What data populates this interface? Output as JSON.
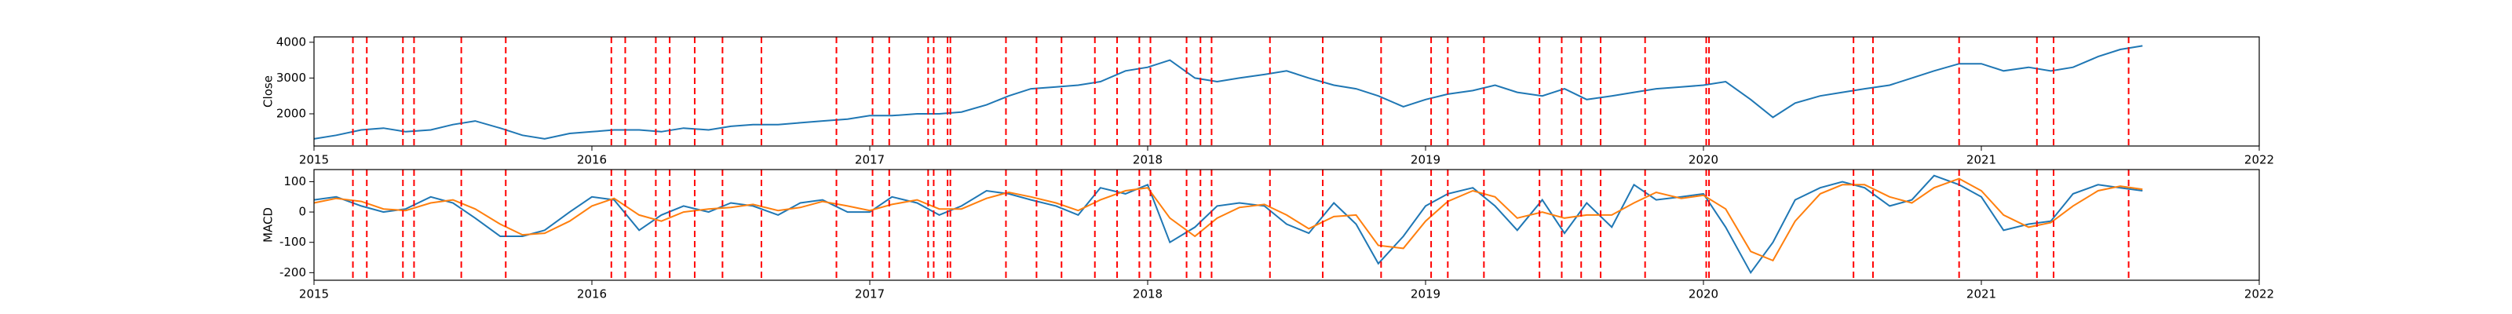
{
  "chart_data": [
    {
      "type": "line",
      "ylabel": "Close",
      "x": [
        2015.0,
        2015.08,
        2015.17,
        2015.25,
        2015.33,
        2015.42,
        2015.5,
        2015.58,
        2015.67,
        2015.75,
        2015.83,
        2015.92,
        2016.0,
        2016.08,
        2016.17,
        2016.25,
        2016.33,
        2016.42,
        2016.5,
        2016.58,
        2016.67,
        2016.75,
        2016.83,
        2016.92,
        2017.0,
        2017.08,
        2017.17,
        2017.25,
        2017.33,
        2017.42,
        2017.5,
        2017.58,
        2017.67,
        2017.75,
        2017.83,
        2017.92,
        2018.0,
        2018.08,
        2018.17,
        2018.25,
        2018.33,
        2018.42,
        2018.5,
        2018.58,
        2018.67,
        2018.75,
        2018.83,
        2018.92,
        2019.0,
        2019.08,
        2019.17,
        2019.25,
        2019.33,
        2019.42,
        2019.5,
        2019.58,
        2019.67,
        2019.75,
        2019.83,
        2019.92,
        2020.0,
        2020.08,
        2020.17,
        2020.25,
        2020.33,
        2020.42,
        2020.5,
        2020.58,
        2020.67,
        2020.75,
        2020.83,
        2020.92,
        2021.0,
        2021.08,
        2021.17,
        2021.25,
        2021.33,
        2021.42,
        2021.5,
        2021.58
      ],
      "series": [
        {
          "color": "#1f77b4",
          "values": [
            1300,
            1400,
            1550,
            1600,
            1500,
            1550,
            1700,
            1800,
            1600,
            1400,
            1300,
            1450,
            1500,
            1550,
            1550,
            1500,
            1600,
            1550,
            1650,
            1700,
            1700,
            1750,
            1800,
            1850,
            1950,
            1950,
            2000,
            2000,
            2050,
            2250,
            2500,
            2700,
            2750,
            2800,
            2900,
            3200,
            3300,
            3500,
            3000,
            2900,
            3000,
            3100,
            3200,
            3000,
            2800,
            2700,
            2500,
            2200,
            2400,
            2550,
            2650,
            2800,
            2600,
            2500,
            2700,
            2400,
            2500,
            2600,
            2700,
            2750,
            2800,
            2900,
            2400,
            1900,
            2300,
            2500,
            2600,
            2700,
            2800,
            3000,
            3200,
            3400,
            3400,
            3200,
            3300,
            3200,
            3300,
            3600,
            3800,
            3900
          ]
        }
      ],
      "vlines": {
        "color": "#ff0000",
        "x": [
          2015.14,
          2015.19,
          2015.32,
          2015.36,
          2015.53,
          2015.69,
          2016.07,
          2016.12,
          2016.23,
          2016.28,
          2016.37,
          2016.47,
          2016.61,
          2016.88,
          2017.01,
          2017.07,
          2017.21,
          2017.23,
          2017.28,
          2017.29,
          2017.49,
          2017.6,
          2017.69,
          2017.81,
          2017.89,
          2017.97,
          2018.01,
          2018.14,
          2018.19,
          2018.23,
          2018.44,
          2018.63,
          2018.84,
          2019.02,
          2019.08,
          2019.21,
          2019.41,
          2019.49,
          2019.56,
          2019.63,
          2019.79,
          2020.01,
          2020.02,
          2020.54,
          2020.61,
          2020.92,
          2021.2,
          2021.26,
          2021.53
        ]
      },
      "xlim": [
        2015,
        2022
      ],
      "xticks": [
        2015,
        2016,
        2017,
        2018,
        2019,
        2020,
        2021,
        2022
      ],
      "ylim": [
        1100,
        4150
      ],
      "yticks": [
        2000,
        3000,
        4000
      ]
    },
    {
      "type": "line",
      "ylabel": "MACD",
      "x": [
        2015.0,
        2015.08,
        2015.17,
        2015.25,
        2015.33,
        2015.42,
        2015.5,
        2015.58,
        2015.67,
        2015.75,
        2015.83,
        2015.92,
        2016.0,
        2016.08,
        2016.17,
        2016.25,
        2016.33,
        2016.42,
        2016.5,
        2016.58,
        2016.67,
        2016.75,
        2016.83,
        2016.92,
        2017.0,
        2017.08,
        2017.17,
        2017.25,
        2017.33,
        2017.42,
        2017.5,
        2017.58,
        2017.67,
        2017.75,
        2017.83,
        2017.92,
        2018.0,
        2018.08,
        2018.17,
        2018.25,
        2018.33,
        2018.42,
        2018.5,
        2018.58,
        2018.67,
        2018.75,
        2018.83,
        2018.92,
        2019.0,
        2019.08,
        2019.17,
        2019.25,
        2019.33,
        2019.42,
        2019.5,
        2019.58,
        2019.67,
        2019.75,
        2019.83,
        2019.92,
        2020.0,
        2020.08,
        2020.17,
        2020.25,
        2020.33,
        2020.42,
        2020.5,
        2020.58,
        2020.67,
        2020.75,
        2020.83,
        2020.92,
        2021.0,
        2021.08,
        2021.17,
        2021.25,
        2021.33,
        2021.42,
        2021.5,
        2021.58
      ],
      "series": [
        {
          "color": "#1f77b4",
          "values": [
            40,
            50,
            20,
            0,
            10,
            50,
            30,
            -20,
            -80,
            -80,
            -60,
            0,
            50,
            40,
            -60,
            -10,
            20,
            0,
            30,
            20,
            -10,
            30,
            40,
            0,
            0,
            50,
            30,
            -10,
            20,
            70,
            60,
            40,
            20,
            -10,
            80,
            60,
            90,
            -100,
            -50,
            20,
            30,
            20,
            -40,
            -70,
            30,
            -40,
            -170,
            -80,
            20,
            60,
            80,
            20,
            -60,
            40,
            -70,
            30,
            -50,
            90,
            40,
            50,
            60,
            -50,
            -200,
            -100,
            40,
            80,
            100,
            80,
            20,
            40,
            120,
            90,
            50,
            -60,
            -40,
            -30,
            60,
            90,
            80,
            70
          ]
        },
        {
          "color": "#ff7f0e",
          "values": [
            30,
            45,
            35,
            10,
            5,
            30,
            40,
            10,
            -40,
            -75,
            -70,
            -30,
            20,
            45,
            -10,
            -30,
            0,
            10,
            15,
            25,
            5,
            15,
            35,
            20,
            5,
            25,
            40,
            10,
            10,
            45,
            65,
            50,
            30,
            5,
            40,
            70,
            80,
            -20,
            -80,
            -20,
            15,
            25,
            -10,
            -55,
            -15,
            -10,
            -110,
            -120,
            -30,
            35,
            70,
            50,
            -20,
            0,
            -20,
            -10,
            -10,
            30,
            65,
            45,
            55,
            10,
            -130,
            -160,
            -30,
            60,
            90,
            90,
            50,
            30,
            80,
            110,
            70,
            -10,
            -50,
            -35,
            20,
            70,
            85,
            75
          ]
        }
      ],
      "vlines": {
        "color": "#ff0000",
        "x": [
          2015.14,
          2015.19,
          2015.32,
          2015.36,
          2015.53,
          2015.69,
          2016.07,
          2016.12,
          2016.23,
          2016.28,
          2016.37,
          2016.47,
          2016.61,
          2016.88,
          2017.01,
          2017.07,
          2017.21,
          2017.23,
          2017.28,
          2017.29,
          2017.49,
          2017.6,
          2017.69,
          2017.81,
          2017.89,
          2017.97,
          2018.01,
          2018.14,
          2018.19,
          2018.23,
          2018.44,
          2018.63,
          2018.84,
          2019.02,
          2019.08,
          2019.21,
          2019.41,
          2019.49,
          2019.56,
          2019.63,
          2019.79,
          2020.01,
          2020.02,
          2020.54,
          2020.61,
          2020.92,
          2021.2,
          2021.26,
          2021.53
        ]
      },
      "xlim": [
        2015,
        2022
      ],
      "xticks": [
        2015,
        2016,
        2017,
        2018,
        2019,
        2020,
        2021,
        2022
      ],
      "ylim": [
        -225,
        140
      ],
      "yticks": [
        -200,
        -100,
        0,
        100
      ]
    }
  ]
}
